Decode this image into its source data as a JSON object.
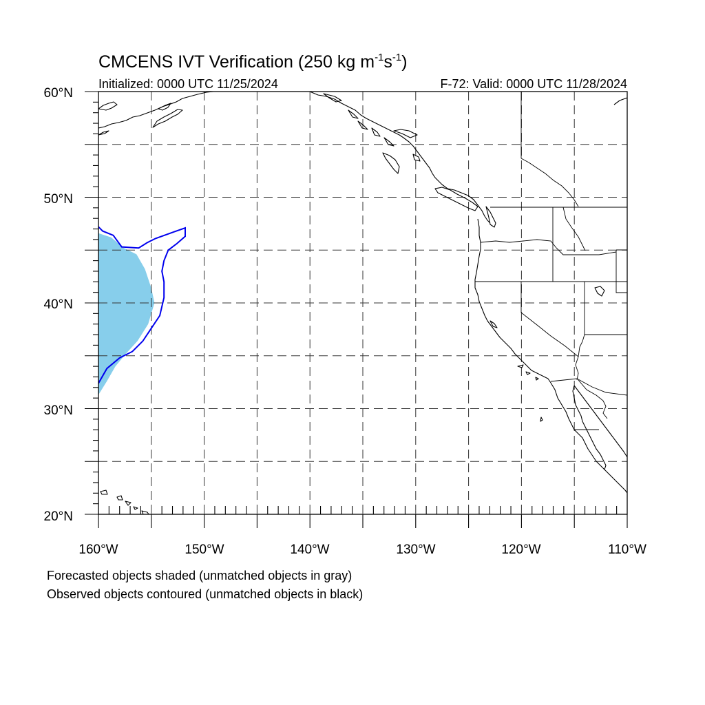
{
  "title": {
    "main": "CMCENS IVT Verification (250 kg m",
    "sup1": "-1",
    "mid": "s",
    "sup2": "-1",
    "close": ")"
  },
  "init_label": "Initialized: 0000 UTC 11/25/2024",
  "valid_label": "F-72: Valid: 0000 UTC 11/28/2024",
  "lat_labels": [
    "60°N",
    "50°N",
    "40°N",
    "30°N",
    "20°N"
  ],
  "lon_labels": [
    "160°W",
    "150°W",
    "140°W",
    "130°W",
    "120°W",
    "110°W"
  ],
  "footnote": {
    "line1": "Forecasted objects shaded (unmatched objects in gray)",
    "line2": "Observed objects contoured (unmatched objects in black)"
  },
  "map": {
    "lon_range": [
      -160,
      -110
    ],
    "lat_range": [
      20,
      60
    ],
    "grid_lon_step": 5,
    "grid_lat_step": 5,
    "forecast_object": {
      "color": "#87ceeb",
      "outline": [
        [
          -160,
          46.6
        ],
        [
          -158.8,
          46.2
        ],
        [
          -157.6,
          45.2
        ],
        [
          -156.4,
          44.6
        ],
        [
          -155.6,
          43.2
        ],
        [
          -155.0,
          41.4
        ],
        [
          -154.7,
          40.0
        ],
        [
          -155.3,
          38.0
        ],
        [
          -156.3,
          36.4
        ],
        [
          -157.4,
          35.2
        ],
        [
          -158.4,
          34.0
        ],
        [
          -159.2,
          32.6
        ],
        [
          -160,
          31.3
        ]
      ]
    },
    "observed_object": {
      "color": "#0000ee",
      "outline": [
        [
          -160,
          47.2
        ],
        [
          -159.6,
          46.8
        ],
        [
          -158.6,
          46.4
        ],
        [
          -157.8,
          45.3
        ],
        [
          -156.2,
          45.2
        ],
        [
          -155.4,
          45.7
        ],
        [
          -154.6,
          46.1
        ],
        [
          -153.2,
          46.6
        ],
        [
          -151.8,
          47.1
        ],
        [
          -151.8,
          46.3
        ],
        [
          -152.6,
          45.6
        ],
        [
          -153.4,
          45.0
        ],
        [
          -153.8,
          44.0
        ],
        [
          -154.0,
          43.0
        ],
        [
          -153.8,
          42.0
        ],
        [
          -153.8,
          40.5
        ],
        [
          -154.2,
          38.8
        ],
        [
          -155.0,
          37.6
        ],
        [
          -155.8,
          36.4
        ],
        [
          -156.8,
          35.4
        ],
        [
          -158.0,
          34.8
        ],
        [
          -159.2,
          33.8
        ],
        [
          -160,
          32.4
        ]
      ]
    }
  }
}
